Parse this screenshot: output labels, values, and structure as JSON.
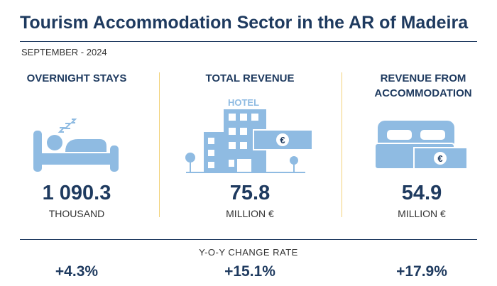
{
  "header": {
    "title": "Tourism Accommodation Sector in the AR of Madeira",
    "subtitle": "SEPTEMBER - 2024"
  },
  "kpis": [
    {
      "label": "OVERNIGHT STAYS",
      "value": "1 090.3",
      "unit": "THOUSAND",
      "change": "+4.3%"
    },
    {
      "label": "TOTAL REVENUE",
      "value": "75.8",
      "unit": "MILLION €",
      "change": "+15.1%"
    },
    {
      "label": "REVENUE FROM ACCOMMODATION",
      "value": "54.9",
      "unit": "MILLION €",
      "change": "+17.9%"
    }
  ],
  "change_title": "Y-O-Y CHANGE RATE",
  "icons": {
    "hotel_sign": "HOTEL",
    "currency": "€"
  }
}
